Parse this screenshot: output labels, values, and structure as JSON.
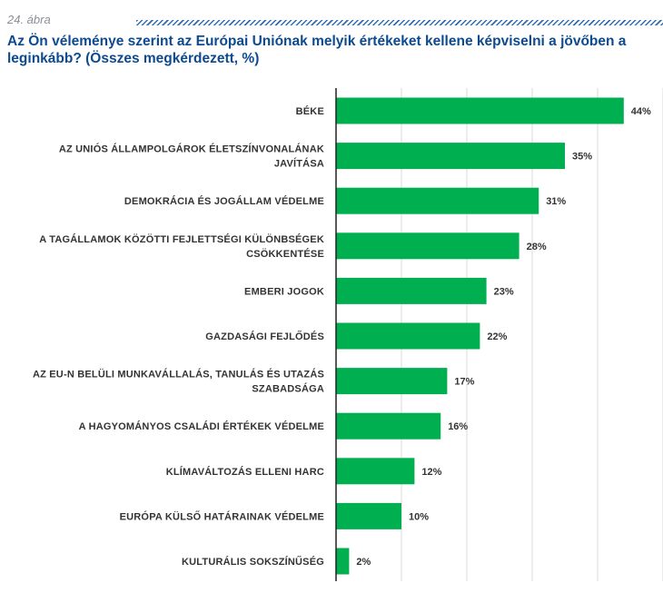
{
  "figure": {
    "label": "24. ábra",
    "title": "Az Ön véleménye szerint az Európai Uniónak melyik értékeket kellene képviselni a jövőben a leginkább? (Összes megkérdezett, %)"
  },
  "colors": {
    "bar": "#00b050",
    "title": "#0d4a8f",
    "grid": "#d9d9d9",
    "axis": "#222222",
    "hatch": "#2f6db3"
  },
  "chart_data": {
    "type": "bar",
    "orientation": "horizontal",
    "categories": [
      [
        "BÉKE"
      ],
      [
        "AZ UNIÓS ÁLLAMPOLGÁROK ÉLETSZÍNVONALÁNAK",
        "JAVÍTÁSA"
      ],
      [
        "DEMOKRÁCIA ÉS JOGÁLLAM VÉDELME"
      ],
      [
        "A TAGÁLLAMOK KÖZÖTTI FEJLETTSÉGI KÜLÖNBSÉGEK",
        "CSÖKKENTÉSE"
      ],
      [
        "EMBERI JOGOK"
      ],
      [
        "GAZDASÁGI FEJLŐDÉS"
      ],
      [
        "AZ EU-N BELÜLI MUNKAVÁLLALÁS, TANULÁS ÉS UTAZÁS",
        "SZABADSÁGA"
      ],
      [
        "A HAGYOMÁNYOS CSALÁDI ÉRTÉKEK VÉDELME"
      ],
      [
        "KLÍMAVÁLTOZÁS ELLENI HARC"
      ],
      [
        "EURÓPA KÜLSŐ HATÁRAINAK VÉDELME"
      ],
      [
        "KULTURÁLIS SOKSZÍNŰSÉG"
      ]
    ],
    "values": [
      44,
      35,
      31,
      28,
      23,
      22,
      17,
      16,
      12,
      10,
      2
    ],
    "value_labels": [
      "44%",
      "35%",
      "31%",
      "28%",
      "23%",
      "22%",
      "17%",
      "16%",
      "12%",
      "10%",
      "2%"
    ],
    "xlim": [
      0,
      50
    ],
    "grid_at": [
      10,
      20,
      30,
      40,
      50
    ],
    "grid": true
  }
}
